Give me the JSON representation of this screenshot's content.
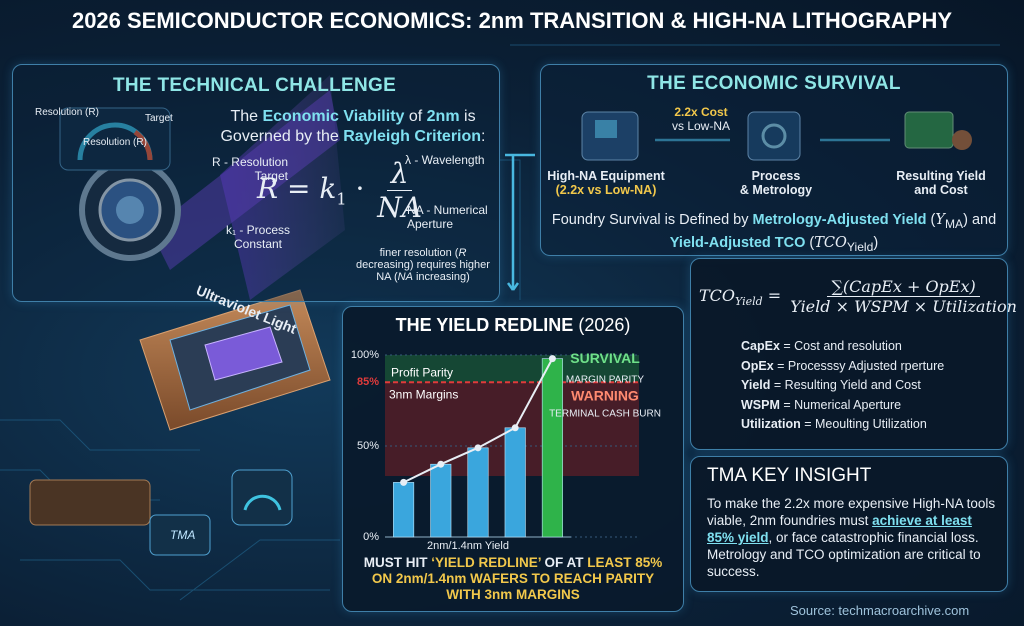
{
  "title": "2026 SEMICONDUCTOR ECONOMICS: 2nm TRANSITION & HIGH-NA LITHOGRAPHY",
  "technical_challenge": {
    "heading": "THE TECHNICAL CHALLENGE",
    "gauge": {
      "label_left": "Resolution (R)",
      "label_right": "Target",
      "label_center": "Resolution (R)"
    },
    "statement": [
      "The ",
      "Economic Viability",
      " of ",
      "2nm",
      " is Governed by the ",
      "Rayleigh Criterion",
      ":"
    ],
    "formula": {
      "lhs": "R",
      "eq": "=",
      "k": "k",
      "k_sub": "1",
      "dot": "·",
      "num": "λ",
      "den": "NA"
    },
    "annotations": {
      "r": "R - Resolution Target",
      "k": "k₁ - Process Constant",
      "lambda": "λ - Wavelength",
      "na": "NA - Numerical Aperture",
      "note": [
        "finer resolution (",
        "R",
        " decreasing) requires higher NA (",
        "NA",
        " increasing)"
      ]
    },
    "beam_label": "Ultraviolet Light",
    "chip_label": "TMA"
  },
  "economic_survival": {
    "heading": "THE ECONOMIC SURVIVAL",
    "cost_note": [
      "2.2x Cost",
      "vs Low-NA"
    ],
    "steps": [
      {
        "label": "High-NA Equipment",
        "sub": "(2.2x vs Low-NA)"
      },
      {
        "label": "Process",
        "sub": "& Metrology"
      },
      {
        "label": "Resulting Yield",
        "sub": "and Cost"
      }
    ],
    "statement": [
      "Foundry Survival is Defined by ",
      "Metrology-Adjusted Yield",
      " (",
      "Y",
      "MA",
      ") and ",
      "Yield-Adjusted TCO",
      " (",
      "TCO",
      "Yield",
      ")"
    ]
  },
  "yield_redline": {
    "heading": "THE YIELD REDLINE",
    "heading_year": "(2026)",
    "ylim": [
      0,
      100
    ],
    "yticks": [
      {
        "value": 0,
        "label": "0%"
      },
      {
        "value": 50,
        "label": "50%"
      },
      {
        "value": 85,
        "label": "85%"
      },
      {
        "value": 100,
        "label": "100%"
      }
    ],
    "values": [
      30,
      40,
      49,
      60,
      98
    ],
    "colors": [
      "#3aa6dd",
      "#3aa6dd",
      "#3aa6dd",
      "#3aa6dd",
      "#2fb34a"
    ],
    "line_color": "#e8eef5",
    "redline_color": "#e23b3b",
    "xlabel": "2nm/1.4nm Yield",
    "labels": {
      "profit_parity": "Profit Parity",
      "margins": "3nm Margins"
    },
    "zones": {
      "survival": "SURVIVAL",
      "survival_sub": "MARGIN PARITY",
      "warning": "WARNING",
      "warning_sub": "TERMINAL CASH BURN"
    },
    "caption": [
      "MUST HIT ",
      "‘YIELD REDLINE’",
      " OF AT ",
      "LEAST 85% ON 2nm/1.4nm WAFERS TO REACH PARITY WITH 3nm MARGINS"
    ]
  },
  "tco": {
    "formula": {
      "lhs": "TCO",
      "lhs_sub": "Yield",
      "eq": "=",
      "num": "∑(CapEx + OpEx)",
      "den": "Yield × WSPM × Utilization"
    },
    "definitions": [
      {
        "term": "CapEx",
        "text": " = Cost and resolution"
      },
      {
        "term": "OpEx",
        "text": " = Processsy Adjusted rperture"
      },
      {
        "term": "Yield",
        "text": " = Resulting Yield and Cost"
      },
      {
        "term": "WSPM",
        "text": " = Numerical Aperture"
      },
      {
        "term": "Utilization",
        "text": " = Meoulting Utilization"
      }
    ]
  },
  "insight": {
    "heading": "TMA KEY INSIGHT",
    "body": [
      "To make the 2.2x more expensive High-NA tools viable, 2nm foundries must ",
      "achieve at least 85% yield",
      ", or face catastrophic financial loss. Metrology and TCO optimization are critical to success."
    ]
  },
  "source": "Source: techmacroarchive.com"
}
